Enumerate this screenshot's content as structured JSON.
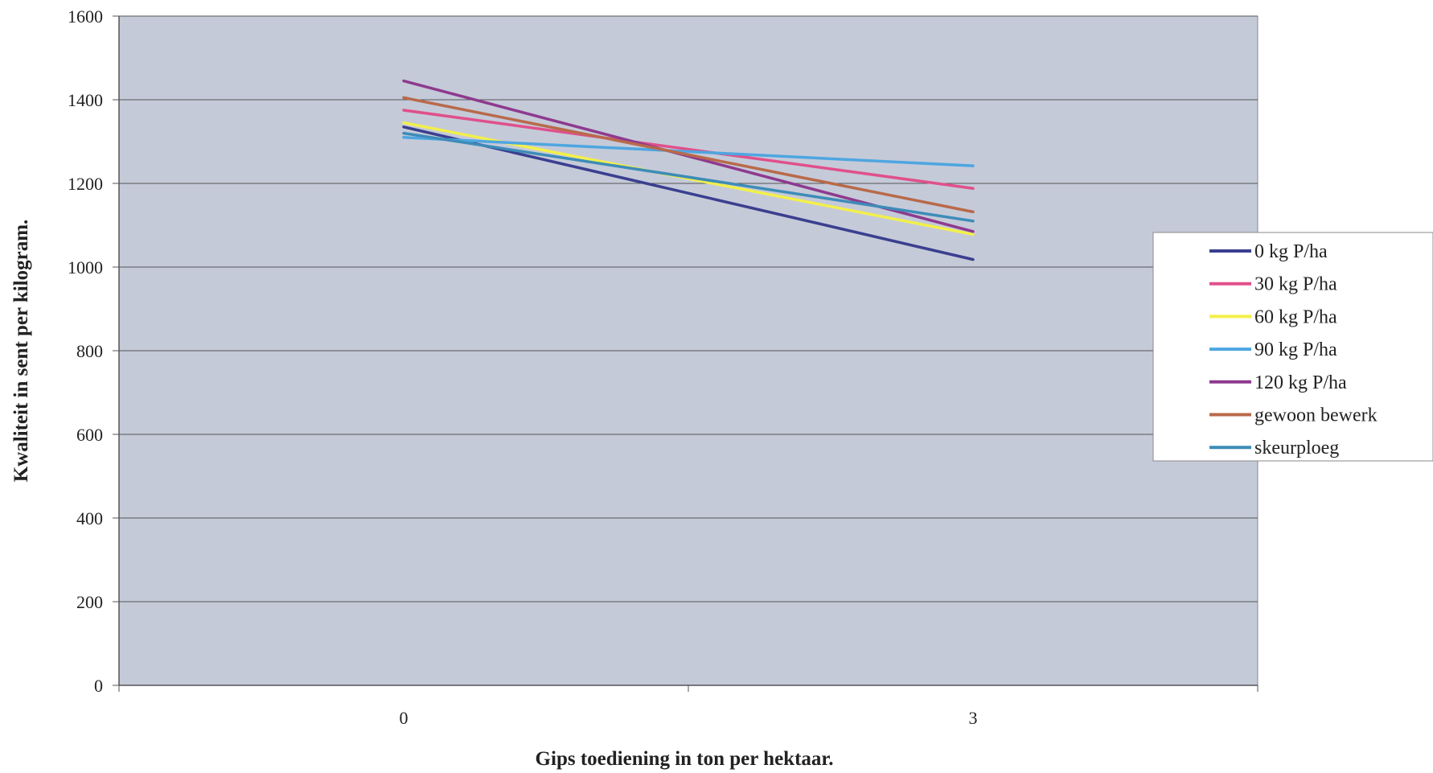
{
  "chart_data": {
    "type": "line",
    "title": "",
    "xlabel": "Gips toediening in ton per hektaar.",
    "ylabel": "Kwaliteit in sent per kilogram.",
    "categories": [
      "0",
      "3"
    ],
    "ylim": [
      0,
      1600
    ],
    "yticks": [
      0,
      200,
      400,
      600,
      800,
      1000,
      1200,
      1400,
      1600
    ],
    "grid": "horizontal",
    "legend_position": "right",
    "plot_background": "#c5cad9",
    "series": [
      {
        "name": "0 kg P/ha",
        "color": "#3a3f8f",
        "values": [
          1335,
          1018
        ]
      },
      {
        "name": "30 kg P/ha",
        "color": "#e0508a",
        "values": [
          1375,
          1188
        ]
      },
      {
        "name": "60 kg P/ha",
        "color": "#f2f04a",
        "values": [
          1345,
          1078
        ]
      },
      {
        "name": "90 kg P/ha",
        "color": "#4ea6e0",
        "values": [
          1310,
          1242
        ]
      },
      {
        "name": "120 kg P/ha",
        "color": "#8e3a8e",
        "values": [
          1445,
          1085
        ]
      },
      {
        "name": "gewoon bewerk",
        "color": "#b86a4a",
        "values": [
          1405,
          1132
        ]
      },
      {
        "name": "skeurploeg",
        "color": "#3d8cb8",
        "values": [
          1320,
          1110
        ]
      }
    ]
  }
}
